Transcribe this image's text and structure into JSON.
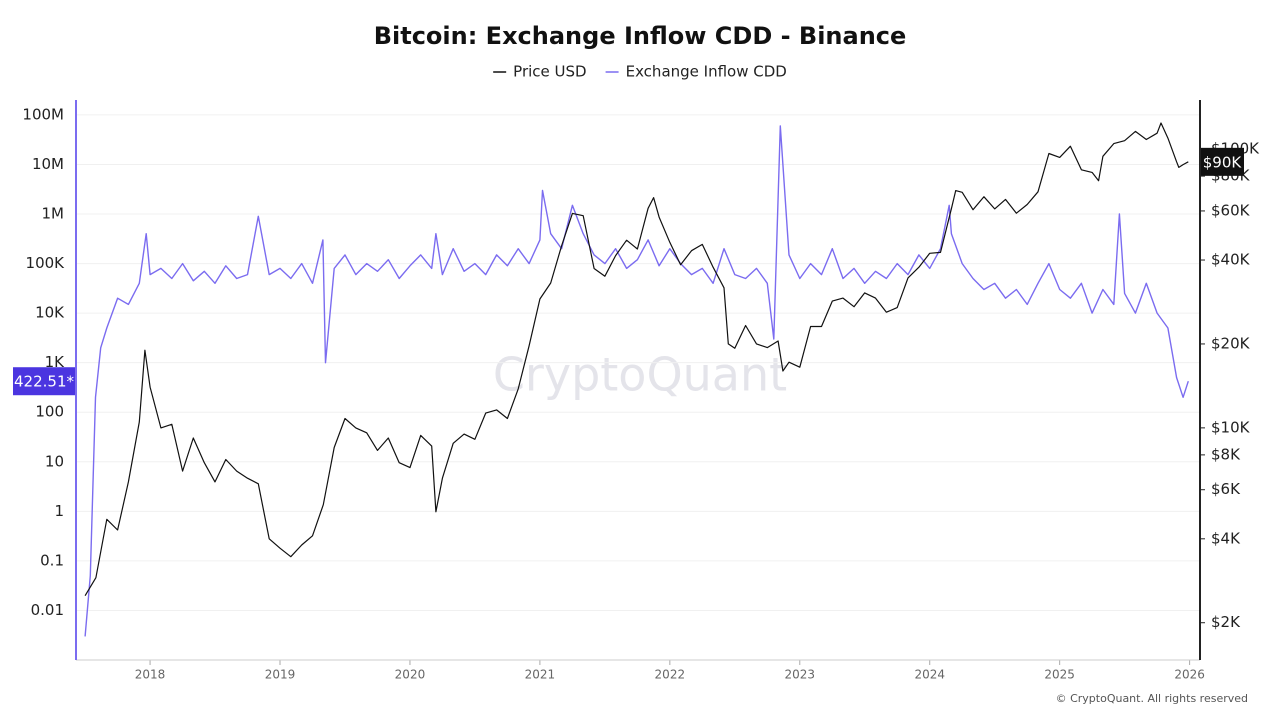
{
  "chart_data": {
    "type": "line",
    "title": "Bitcoin: Exchange Inflow CDD - Binance",
    "log_scale": true,
    "grid": true,
    "legend": "top",
    "xlim": [
      2017.43,
      2026.08
    ],
    "xticks": [
      2018,
      2019,
      2020,
      2021,
      2022,
      2023,
      2024,
      2025,
      2026
    ],
    "ylim": [
      0.001,
      200000000
    ],
    "yticks": [
      {
        "value": 100000000,
        "label": "100M"
      },
      {
        "value": 10000000,
        "label": "10M"
      },
      {
        "value": 1000000,
        "label": "1M"
      },
      {
        "value": 100000,
        "label": "100K"
      },
      {
        "value": 10000,
        "label": "10K"
      },
      {
        "value": 1000,
        "label": "1K"
      },
      100,
      10,
      1,
      0.1,
      0.01
    ],
    "y2lim": [
      1470,
      150000
    ],
    "y2ticks": [
      {
        "value": 100000,
        "label": "$100K"
      },
      {
        "value": 80000,
        "label": "$80K"
      },
      {
        "value": 60000,
        "label": "$60K"
      },
      {
        "value": 40000,
        "label": "$40K"
      },
      {
        "value": 20000,
        "label": "$20K"
      },
      {
        "value": 10000,
        "label": "$10K"
      },
      {
        "value": 8000,
        "label": "$8K"
      },
      {
        "value": 6000,
        "label": "$6K"
      },
      {
        "value": 4000,
        "label": "$4K"
      },
      {
        "value": 2000,
        "label": "$2K"
      }
    ],
    "price_marker": {
      "value": 90000,
      "label": "$90K"
    },
    "cdd_marker": {
      "value": 422.51,
      "label": "422.51*"
    },
    "watermark": "CryptoQuant",
    "footer": "© CryptoQuant. All rights reserved",
    "series": [
      {
        "name": "Price USD",
        "color": "#111111",
        "axis": "y2",
        "x": [
          2017.5,
          2017.583,
          2017.667,
          2017.75,
          2017.833,
          2017.917,
          2017.96,
          2018.0,
          2018.083,
          2018.167,
          2018.25,
          2018.333,
          2018.417,
          2018.5,
          2018.583,
          2018.667,
          2018.75,
          2018.833,
          2018.917,
          2019.0,
          2019.083,
          2019.167,
          2019.25,
          2019.333,
          2019.417,
          2019.5,
          2019.583,
          2019.667,
          2019.75,
          2019.833,
          2019.917,
          2020.0,
          2020.083,
          2020.167,
          2020.2,
          2020.25,
          2020.333,
          2020.417,
          2020.5,
          2020.583,
          2020.667,
          2020.75,
          2020.833,
          2020.917,
          2021.0,
          2021.083,
          2021.167,
          2021.25,
          2021.333,
          2021.417,
          2021.5,
          2021.583,
          2021.667,
          2021.75,
          2021.833,
          2021.875,
          2021.917,
          2022.0,
          2022.083,
          2022.167,
          2022.25,
          2022.333,
          2022.417,
          2022.45,
          2022.5,
          2022.583,
          2022.667,
          2022.75,
          2022.833,
          2022.87,
          2022.917,
          2023.0,
          2023.083,
          2023.167,
          2023.25,
          2023.333,
          2023.417,
          2023.5,
          2023.583,
          2023.667,
          2023.75,
          2023.833,
          2023.917,
          2024.0,
          2024.083,
          2024.167,
          2024.2,
          2024.25,
          2024.333,
          2024.417,
          2024.5,
          2024.583,
          2024.667,
          2024.75,
          2024.833,
          2024.917,
          2025.0,
          2025.083,
          2025.167,
          2025.25,
          2025.3,
          2025.333,
          2025.417,
          2025.5,
          2025.583,
          2025.667,
          2025.75,
          2025.78,
          2025.833,
          2025.9,
          2025.917,
          2025.95,
          2025.99
        ],
        "values": [
          2500,
          2900,
          4700,
          4300,
          6400,
          10500,
          19000,
          14000,
          10000,
          10300,
          7000,
          9200,
          7500,
          6400,
          7700,
          7000,
          6600,
          6300,
          4000,
          3700,
          3450,
          3800,
          4100,
          5300,
          8500,
          10800,
          10000,
          9600,
          8300,
          9200,
          7500,
          7200,
          9400,
          8600,
          5000,
          6600,
          8800,
          9500,
          9100,
          11300,
          11600,
          10800,
          13800,
          19700,
          29000,
          33100,
          45000,
          58800,
          57700,
          37300,
          35000,
          41500,
          47100,
          43800,
          61300,
          67000,
          57000,
          46300,
          38500,
          43200,
          45500,
          37700,
          31800,
          20000,
          19300,
          23300,
          20000,
          19400,
          20500,
          16000,
          17200,
          16500,
          23100,
          23100,
          28500,
          29200,
          27200,
          30500,
          29200,
          26000,
          27000,
          34500,
          37700,
          42300,
          42600,
          61100,
          71000,
          70000,
          60600,
          67500,
          61000,
          66000,
          58900,
          63300,
          70300,
          96400,
          93400,
          102400,
          84300,
          82500,
          77000,
          94200,
          104600,
          107200,
          115700,
          108200,
          114000,
          124000,
          109500,
          90000,
          86000,
          88000,
          90000
        ]
      },
      {
        "name": "Exchange Inflow CDD",
        "color": "#7b6cf0",
        "x": [
          2017.5,
          2017.54,
          2017.58,
          2017.62,
          2017.667,
          2017.75,
          2017.833,
          2017.917,
          2017.97,
          2018.0,
          2018.083,
          2018.167,
          2018.25,
          2018.333,
          2018.417,
          2018.5,
          2018.583,
          2018.667,
          2018.75,
          2018.833,
          2018.917,
          2019.0,
          2019.083,
          2019.167,
          2019.25,
          2019.33,
          2019.35,
          2019.417,
          2019.5,
          2019.583,
          2019.667,
          2019.75,
          2019.833,
          2019.917,
          2020.0,
          2020.083,
          2020.167,
          2020.2,
          2020.25,
          2020.333,
          2020.417,
          2020.5,
          2020.583,
          2020.667,
          2020.75,
          2020.833,
          2020.917,
          2021.0,
          2021.02,
          2021.083,
          2021.167,
          2021.25,
          2021.333,
          2021.417,
          2021.5,
          2021.583,
          2021.667,
          2021.75,
          2021.833,
          2021.917,
          2022.0,
          2022.083,
          2022.167,
          2022.25,
          2022.333,
          2022.417,
          2022.5,
          2022.583,
          2022.667,
          2022.75,
          2022.8,
          2022.85,
          2022.917,
          2023.0,
          2023.083,
          2023.167,
          2023.25,
          2023.333,
          2023.417,
          2023.5,
          2023.583,
          2023.667,
          2023.75,
          2023.833,
          2023.917,
          2024.0,
          2024.083,
          2024.15,
          2024.167,
          2024.25,
          2024.333,
          2024.417,
          2024.5,
          2024.583,
          2024.667,
          2024.75,
          2024.833,
          2024.917,
          2025.0,
          2025.083,
          2025.167,
          2025.25,
          2025.333,
          2025.417,
          2025.46,
          2025.5,
          2025.583,
          2025.667,
          2025.75,
          2025.833,
          2025.9,
          2025.95,
          2025.99
        ],
        "values": [
          0.003,
          0.05,
          200,
          2000,
          5000,
          20000,
          15000,
          40000,
          400000,
          60000,
          80000,
          50000,
          100000,
          45000,
          70000,
          40000,
          90000,
          50000,
          60000,
          900000,
          60000,
          80000,
          50000,
          100000,
          40000,
          300000,
          1000,
          80000,
          150000,
          60000,
          100000,
          70000,
          120000,
          50000,
          90000,
          150000,
          80000,
          400000,
          60000,
          200000,
          70000,
          100000,
          60000,
          150000,
          90000,
          200000,
          100000,
          300000,
          3000000,
          400000,
          200000,
          1500000,
          400000,
          150000,
          100000,
          200000,
          80000,
          120000,
          300000,
          90000,
          200000,
          100000,
          60000,
          80000,
          40000,
          200000,
          60000,
          50000,
          80000,
          40000,
          3000,
          60000000,
          150000,
          50000,
          100000,
          60000,
          200000,
          50000,
          80000,
          40000,
          70000,
          50000,
          100000,
          60000,
          150000,
          80000,
          200000,
          1500000,
          400000,
          100000,
          50000,
          30000,
          40000,
          20000,
          30000,
          15000,
          40000,
          100000,
          30000,
          20000,
          40000,
          10000,
          30000,
          15000,
          1000000,
          25000,
          10000,
          40000,
          10000,
          5000,
          500,
          200,
          422.51
        ]
      }
    ]
  }
}
